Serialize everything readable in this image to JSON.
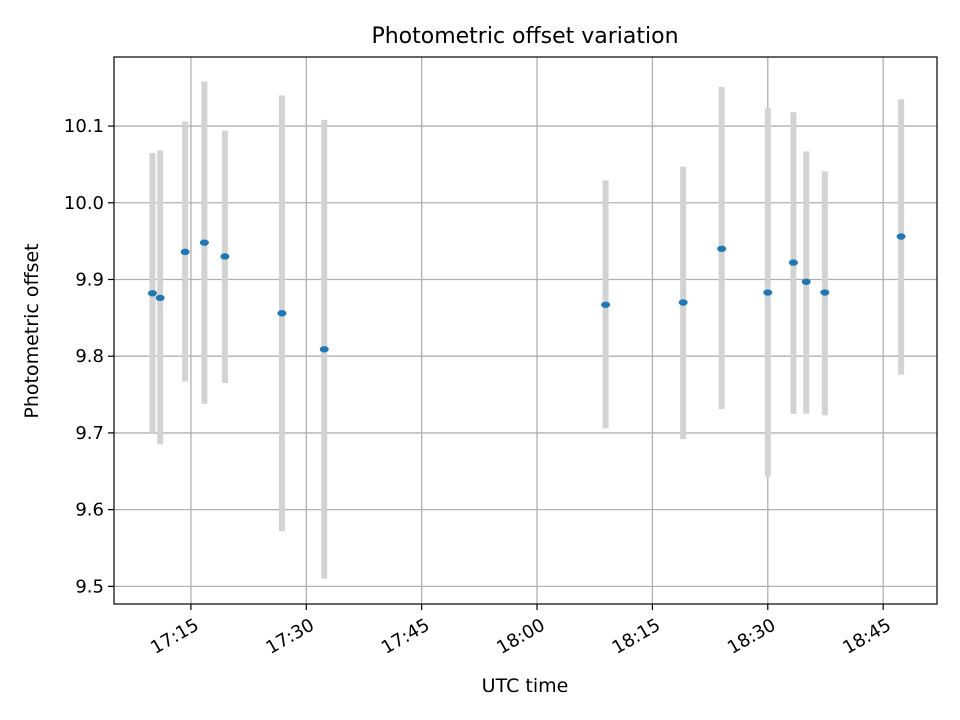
{
  "chart_data": {
    "type": "scatter",
    "title": "Photometric offset variation",
    "xlabel": "UTC time",
    "ylabel": "Photometric offset",
    "xlim": [
      "17:05",
      "18:52"
    ],
    "ylim": [
      9.477,
      10.19
    ],
    "x_ticks": [
      "17:15",
      "17:30",
      "17:45",
      "18:00",
      "18:15",
      "18:30",
      "18:45"
    ],
    "y_ticks": [
      "9.5",
      "9.6",
      "9.7",
      "9.8",
      "9.9",
      "10.0",
      "10.1"
    ],
    "grid": true,
    "legend": "none",
    "colors": {
      "points": "#1f77b4",
      "error_bars": "#d3d3d3",
      "grid": "#b0b0b0"
    },
    "points": [
      {
        "x": "17:10:00",
        "y": 9.882,
        "ylo": 9.7,
        "yhi": 10.065
      },
      {
        "x": "17:11:00",
        "y": 9.876,
        "ylo": 9.685,
        "yhi": 10.068
      },
      {
        "x": "17:14:15",
        "y": 9.936,
        "ylo": 9.767,
        "yhi": 10.106
      },
      {
        "x": "17:16:45",
        "y": 9.948,
        "ylo": 9.738,
        "yhi": 10.158
      },
      {
        "x": "17:19:25",
        "y": 9.93,
        "ylo": 9.765,
        "yhi": 10.094
      },
      {
        "x": "17:26:50",
        "y": 9.856,
        "ylo": 9.572,
        "yhi": 10.14
      },
      {
        "x": "17:32:20",
        "y": 9.809,
        "ylo": 9.51,
        "yhi": 10.108
      },
      {
        "x": "18:08:55",
        "y": 9.867,
        "ylo": 9.706,
        "yhi": 10.029
      },
      {
        "x": "18:19:00",
        "y": 9.87,
        "ylo": 9.692,
        "yhi": 10.047
      },
      {
        "x": "18:24:00",
        "y": 9.94,
        "ylo": 9.731,
        "yhi": 10.151
      },
      {
        "x": "18:30:00",
        "y": 9.883,
        "ylo": 9.643,
        "yhi": 10.123
      },
      {
        "x": "18:33:20",
        "y": 9.922,
        "ylo": 9.725,
        "yhi": 10.118
      },
      {
        "x": "18:35:00",
        "y": 9.897,
        "ylo": 9.725,
        "yhi": 10.067
      },
      {
        "x": "18:37:25",
        "y": 9.883,
        "ylo": 9.723,
        "yhi": 10.041
      },
      {
        "x": "18:47:20",
        "y": 9.956,
        "ylo": 9.776,
        "yhi": 10.135
      }
    ]
  }
}
